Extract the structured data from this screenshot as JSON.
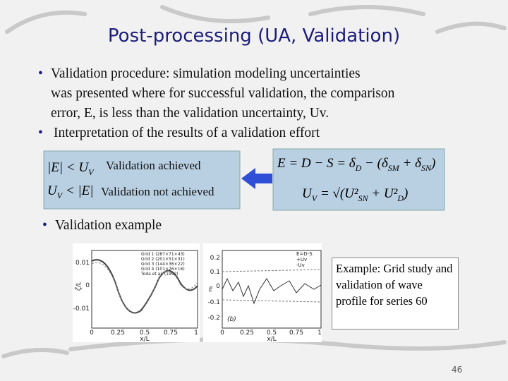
{
  "title": "Post-processing (UA, Validation)",
  "bullets": [
    {
      "lines": [
        "Validation procedure: simulation modeling uncertainties",
        "was presented where for successful validation, the comparison",
        "error, E, is less than the validation uncertainty, Uv."
      ]
    },
    {
      "lines": [
        "Interpretation of the results of a validation effort"
      ]
    },
    {
      "lines": [
        "Validation example"
      ]
    }
  ],
  "criteria": [
    {
      "formula": [
        "|E| < U",
        "V"
      ],
      "label": "Validation achieved"
    },
    {
      "formula": [
        "U",
        "V",
        " < |E|"
      ],
      "label": "Validation not achieved"
    }
  ],
  "equations": [
    [
      "E = D − S = δ",
      "D",
      " − (δ",
      "SM",
      " + δ",
      "SN",
      ")"
    ],
    [
      "U",
      "V",
      " = √(U²",
      "SN",
      " + U²",
      "D",
      ")"
    ]
  ],
  "plot_a": {
    "legend": [
      "Grid 1 (287×71×43)",
      "Grid 2 (201×51×31)",
      "Grid 3 (144×36×22)",
      "Grid 4 (101×26×16)",
      "Toda et al. (1992)"
    ],
    "ylabel": "ζ/L",
    "yticks": [
      "0.01",
      "0",
      "-0.01"
    ],
    "xticks": [
      "0",
      "0.25",
      "0.5",
      "0.75",
      "1"
    ],
    "xlabel": "x/L"
  },
  "plot_b": {
    "legend": [
      "E=D-S",
      "+Uv",
      "-Uv"
    ],
    "panel": "(b)",
    "ylabel": "E",
    "yticks": [
      "0.2",
      "0.1",
      "0",
      "-0.1",
      "-0.2"
    ],
    "xticks": [
      "0",
      "0.25",
      "0.5",
      "0.75",
      "1"
    ],
    "xlabel": "x/L"
  },
  "caption": "Example: Grid study and validation of wave profile for series 60",
  "page_number": "46"
}
